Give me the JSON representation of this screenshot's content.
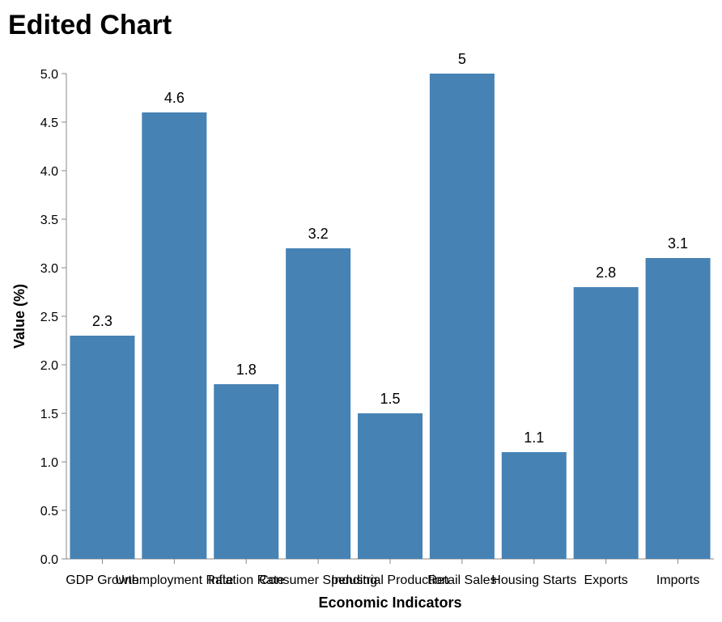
{
  "chart_data": {
    "type": "bar",
    "title": "Edited Chart",
    "xlabel": "Economic Indicators",
    "ylabel": "Value (%)",
    "categories": [
      "GDP Growth",
      "Unemployment Rate",
      "Inflation Rate",
      "Consumer Spending",
      "Industrial Production",
      "Retail Sales",
      "Housing Starts",
      "Exports",
      "Imports"
    ],
    "values": [
      2.3,
      4.6,
      1.8,
      3.2,
      1.5,
      5,
      1.1,
      2.8,
      3.1
    ],
    "data_labels": [
      "2.3",
      "4.6",
      "1.8",
      "3.2",
      "1.5",
      "5",
      "1.1",
      "2.8",
      "3.1"
    ],
    "ylim": [
      0,
      5
    ],
    "yticks": [
      0,
      0.5,
      1,
      1.5,
      2,
      2.5,
      3,
      3.5,
      4,
      4.5,
      5
    ],
    "ytick_labels": [
      "0.0",
      "0.5",
      "1.0",
      "1.5",
      "2.0",
      "2.5",
      "3.0",
      "3.5",
      "4.0",
      "4.5",
      "5.0"
    ],
    "grid": false,
    "legend": "none",
    "bar_color": "#4682b4",
    "axis_color": "#888888"
  }
}
